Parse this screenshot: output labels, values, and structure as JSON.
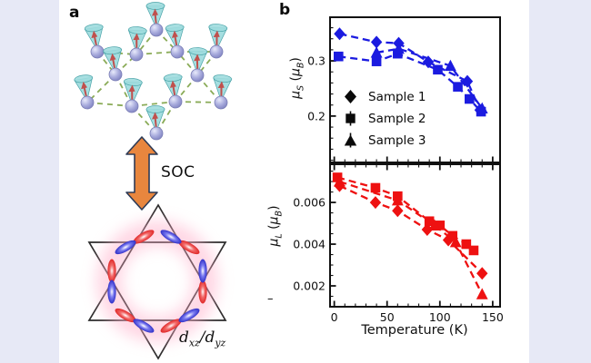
{
  "page": {
    "background": "#e7e9f6",
    "card_background": "#ffffff"
  },
  "panel_a": {
    "label": "a",
    "soc_label": "SOC",
    "orbital_label": {
      "d1": "d",
      "sub1": "xz",
      "sep": "/",
      "d2": "d",
      "sub2": "yz"
    },
    "colors": {
      "arrow": "#e8863e",
      "arrow_outline": "#2c3a56",
      "sphere": "#9a9ed6",
      "cone": "#8fd6d8",
      "bond": "#8aab57",
      "lobe_red": "#dd0f0f",
      "lobe_blue": "#1d1dc4",
      "glow": "#ffaec9",
      "spin_arrow": "#c0504d",
      "star_line": "#2b2b2b"
    }
  },
  "panel_b": {
    "label": "b",
    "legend": [
      {
        "label": "Sample 1",
        "marker": "diamond"
      },
      {
        "label": "Sample 2",
        "marker": "square"
      },
      {
        "label": "Sample 3",
        "marker": "triangle"
      }
    ],
    "ylabel_top": {
      "mu": "μ",
      "sub": "S",
      "open": " (",
      "mu2": "μ",
      "sub2": "B",
      "close": ")"
    },
    "ylabel_bottom": {
      "mu": "μ",
      "sub": "L",
      "open": " (",
      "mu2": "μ",
      "sub2": "B",
      "close": ")"
    },
    "xlabel": "Temperature (K)",
    "axis_dash": "–"
  },
  "chart_data": [
    {
      "type": "scatter",
      "panel": "top",
      "title": "",
      "ylabel": "μ_S (μ_B)",
      "xlabel": "",
      "xlim": [
        -4,
        157
      ],
      "ylim": [
        0.116,
        0.379
      ],
      "xticks": [
        0,
        50,
        100,
        150
      ],
      "show_xtick_labels": false,
      "ticks_top": false,
      "yticks": [
        0.2,
        0.3
      ],
      "minor_x": 10,
      "minor_y": 0.02,
      "grid": false,
      "color": "#1b1be0",
      "line_style": "dashed",
      "error_bar": 0.007,
      "legend_position": "center-left",
      "series": [
        {
          "name": "Sample 1",
          "marker": "diamond",
          "points": [
            [
              5,
              0.349
            ],
            [
              40,
              0.334
            ],
            [
              61,
              0.332
            ],
            [
              89,
              0.298
            ],
            [
              126,
              0.263
            ],
            [
              138,
              0.211
            ]
          ]
        },
        {
          "name": "Sample 2",
          "marker": "square",
          "points": [
            [
              4,
              0.308
            ],
            [
              40,
              0.299
            ],
            [
              60,
              0.313
            ],
            [
              98,
              0.284
            ],
            [
              117,
              0.253
            ],
            [
              128,
              0.231
            ],
            [
              139,
              0.208
            ]
          ]
        },
        {
          "name": "Sample 3",
          "marker": "triangle",
          "points": [
            [
              40,
              0.315
            ],
            [
              61,
              0.322
            ],
            [
              110,
              0.291
            ],
            [
              140,
              0.214
            ]
          ]
        }
      ]
    },
    {
      "type": "scatter",
      "panel": "bottom",
      "title": "",
      "ylabel": "μ_L (μ_B)",
      "xlabel": "Temperature (K)",
      "xlim": [
        -4,
        157
      ],
      "ylim": [
        0.001,
        0.00783
      ],
      "xticks": [
        0,
        50,
        100,
        150
      ],
      "show_xtick_labels": true,
      "ticks_top": true,
      "yticks": [
        0.002,
        0.004,
        0.006
      ],
      "minor_x": 10,
      "minor_y": 0.0005,
      "grid": false,
      "color": "#ee1111",
      "line_style": "dashed",
      "error_bar": 0.0002,
      "legend_position": "none",
      "series": [
        {
          "name": "Sample 1",
          "marker": "diamond",
          "points": [
            [
              5,
              0.0068
            ],
            [
              39,
              0.006
            ],
            [
              60,
              0.0056
            ],
            [
              88,
              0.0047
            ],
            [
              108,
              0.0042
            ],
            [
              140,
              0.0026
            ]
          ]
        },
        {
          "name": "Sample 2",
          "marker": "square",
          "points": [
            [
              3,
              0.0072
            ],
            [
              39,
              0.0067
            ],
            [
              60,
              0.0063
            ],
            [
              90,
              0.0051
            ],
            [
              100,
              0.0049
            ],
            [
              112,
              0.0044
            ],
            [
              125,
              0.004
            ],
            [
              132,
              0.0037
            ]
          ]
        },
        {
          "name": "Sample 3",
          "marker": "triangle",
          "points": [
            [
              5,
              0.007
            ],
            [
              60,
              0.0061
            ],
            [
              95,
              0.0049
            ],
            [
              115,
              0.0041
            ],
            [
              140,
              0.0016
            ]
          ]
        }
      ]
    }
  ]
}
